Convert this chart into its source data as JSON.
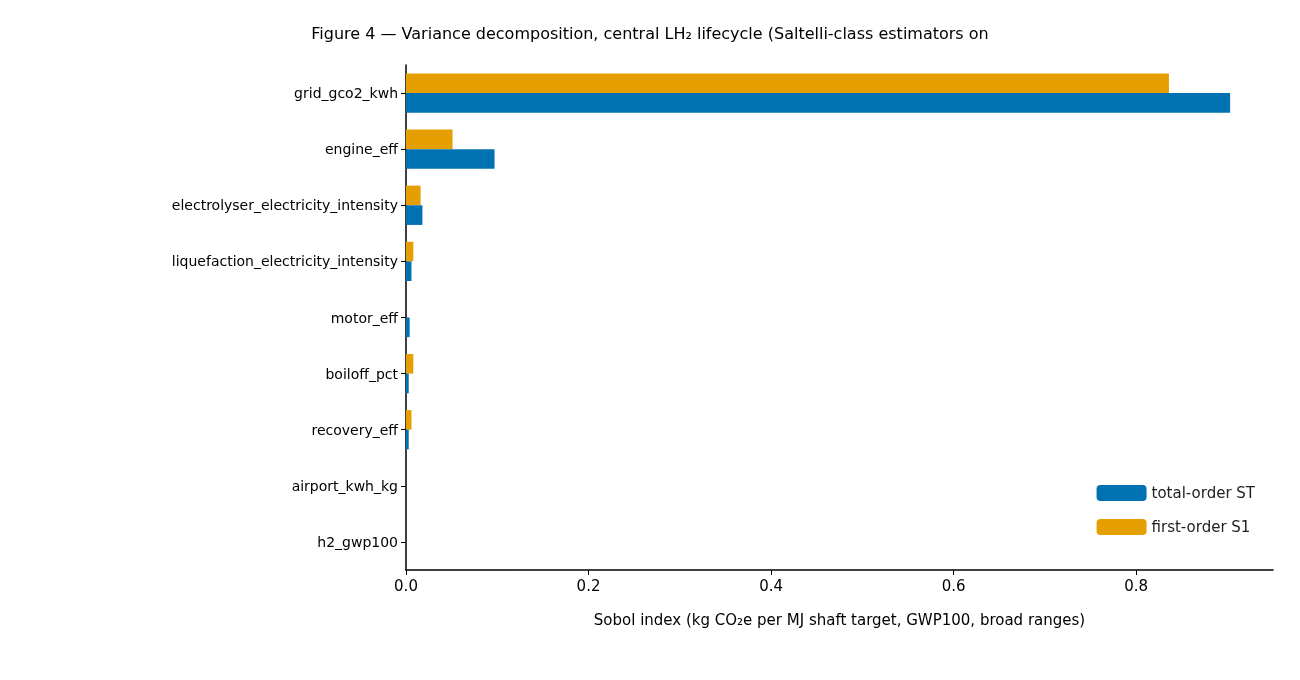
{
  "chart_data": {
    "type": "bar",
    "orientation": "horizontal",
    "title": "Figure 4 — Variance decomposition, central LH₂ lifecycle (Saltelli-class estimators on",
    "xlabel": "Sobol index (kg CO₂e per MJ shaft target, GWP100, broad ranges)",
    "categories": [
      "grid_gco2_kwh",
      "engine_eff",
      "electrolyser_electricity_intensity",
      "liquefaction_electricity_intensity",
      "motor_eff",
      "boiloff_pct",
      "recovery_eff",
      "airport_kwh_kg",
      "h2_gwp100"
    ],
    "series": [
      {
        "name": "total-order ST",
        "color": "#0072b2",
        "values": [
          0.903,
          0.097,
          0.018,
          0.006,
          0.004,
          0.003,
          0.003,
          0,
          0
        ]
      },
      {
        "name": "first-order S1",
        "color": "#e69f00",
        "values": [
          0.836,
          0.051,
          0.016,
          0.008,
          0,
          0.008,
          0.006,
          0,
          0
        ]
      }
    ],
    "xlim": [
      0,
      0.95
    ],
    "xticks": [
      {
        "value": 0,
        "label": "0.0"
      },
      {
        "value": 0.2,
        "label": "0.2"
      },
      {
        "value": 0.4,
        "label": "0.4"
      },
      {
        "value": 0.6,
        "label": "0.6"
      },
      {
        "value": 0.8,
        "label": "0.8"
      }
    ],
    "grid": false,
    "legend": "bottom right"
  }
}
